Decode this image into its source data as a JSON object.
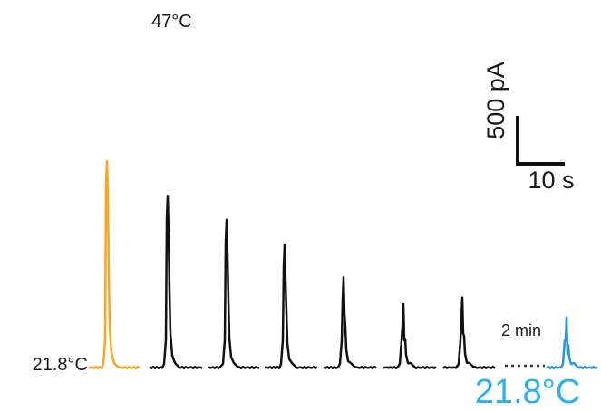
{
  "chart_data": {
    "type": "line",
    "x_unit": "s",
    "y_unit": "pA",
    "colors": {
      "first": "#f7a823",
      "middle": "#111111",
      "last": "#2b95d6"
    },
    "series": [
      {
        "peak": 2150
      },
      {
        "peak": 1790
      },
      {
        "peak": 1540
      },
      {
        "peak": 1280
      },
      {
        "peak": 940
      },
      {
        "peak": 660
      },
      {
        "peak": 730
      },
      {
        "peak": 520
      }
    ],
    "annotations": {
      "start_temp": "21.8°C",
      "hot_temp": "47°C",
      "end_temp": "21.8°C",
      "gap": "2 min"
    },
    "scale_bar": {
      "y_label": "500 pA",
      "x_label": "10 s",
      "y_value": 500,
      "x_value": 10
    }
  }
}
